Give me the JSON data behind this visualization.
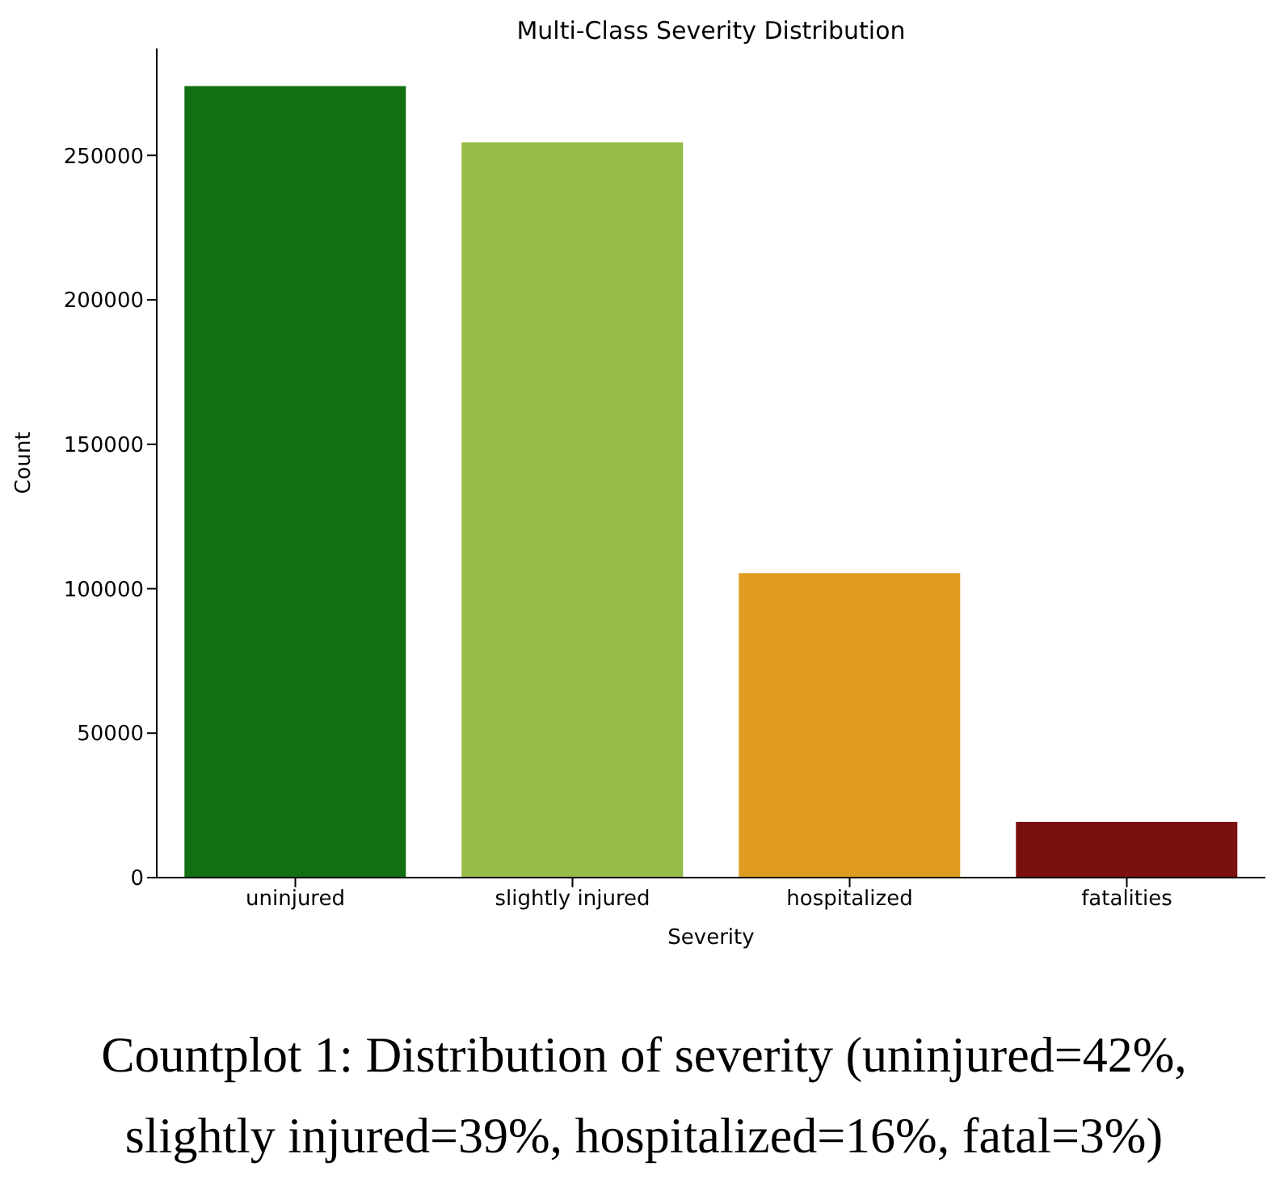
{
  "chart_data": {
    "type": "bar",
    "title": "Multi-Class Severity Distribution",
    "xlabel": "Severity",
    "ylabel": "Count",
    "categories": [
      "uninjured",
      "slightly injured",
      "hospitalized",
      "fatalities"
    ],
    "values": [
      274000,
      254500,
      105400,
      19300
    ],
    "colors": [
      "#117011",
      "#96bb46",
      "#e09c21",
      "#7a110e"
    ],
    "ylim": [
      0,
      287000
    ],
    "yticks": [
      0,
      50000,
      100000,
      150000,
      200000,
      250000
    ],
    "grid": false,
    "annotations": [
      "Countplot 1: Distribution of severity (uninjured=42%, slightly injured=39%, hospitalized=16%, fatal=3%)"
    ]
  }
}
